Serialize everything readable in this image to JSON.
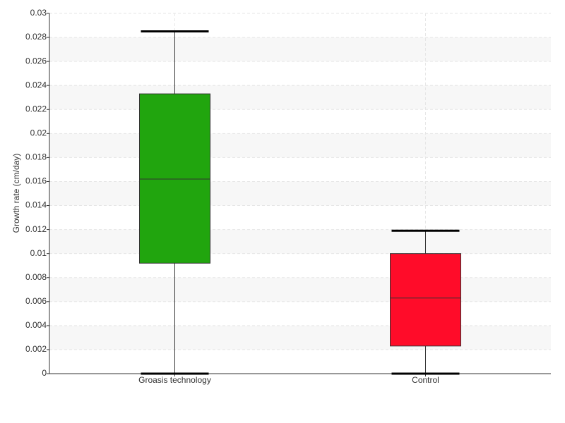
{
  "chart_data": {
    "type": "box",
    "y_label": "Growth rate (cm/day)",
    "categories": [
      "Groasis technology",
      "Control"
    ],
    "boxes": [
      {
        "min": 0,
        "q1": 0.0092,
        "median": 0.0162,
        "q3": 0.0233,
        "max": 0.0285,
        "color": "#21a50e"
      },
      {
        "min": 0,
        "q1": 0.0023,
        "median": 0.0063,
        "q3": 0.01,
        "max": 0.0119,
        "color": "#ff0c29"
      }
    ],
    "ylim": [
      0,
      0.03
    ],
    "yticks": [
      0,
      0.002,
      0.004,
      0.006,
      0.008,
      0.01,
      0.012,
      0.014,
      0.016,
      0.018,
      0.02,
      0.022,
      0.024,
      0.026,
      0.028,
      0.03
    ],
    "grid": true,
    "striped_bands": true
  }
}
